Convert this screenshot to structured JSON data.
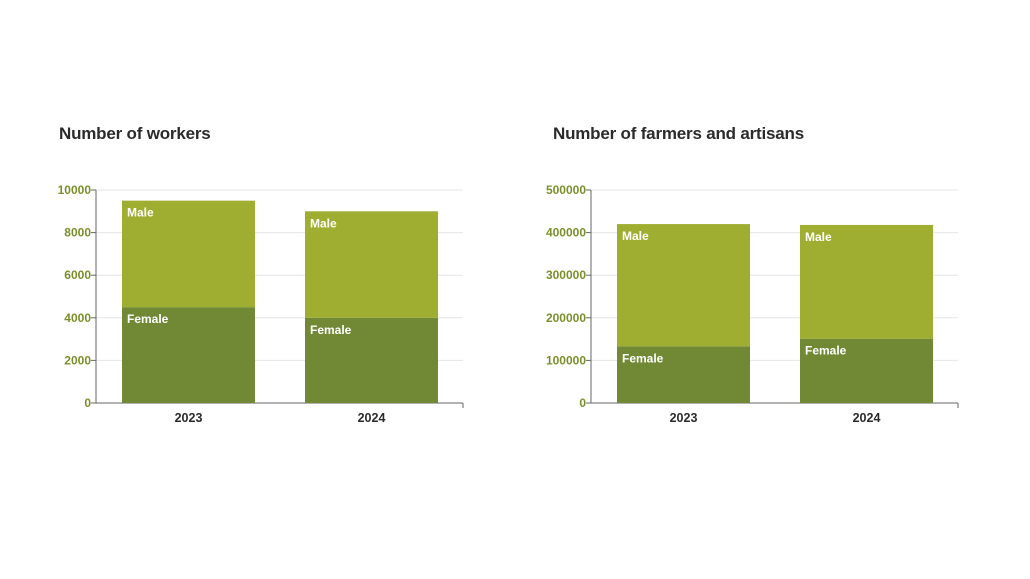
{
  "colors": {
    "female": "#718935",
    "male": "#9fae31",
    "axis": "#666666",
    "tick_label": "#7a8f2a",
    "grid": "#e6e6e6"
  },
  "chart_data": [
    {
      "type": "bar",
      "stacked": true,
      "title": "Number of workers",
      "categories": [
        "2023",
        "2024"
      ],
      "series": [
        {
          "name": "Female",
          "values": [
            4500,
            4000
          ]
        },
        {
          "name": "Male",
          "values": [
            5000,
            5000
          ]
        }
      ],
      "ylim": [
        0,
        10000
      ],
      "yticks": [
        "0",
        "2000",
        "4000",
        "6000",
        "8000",
        "10000"
      ],
      "xlabel": "",
      "ylabel": "",
      "grid": true,
      "legend": "inline segment labels"
    },
    {
      "type": "bar",
      "stacked": true,
      "title": "Number of farmers and artisans",
      "categories": [
        "2023",
        "2024"
      ],
      "series": [
        {
          "name": "Female",
          "values": [
            133000,
            151000
          ]
        },
        {
          "name": "Male",
          "values": [
            287000,
            267000
          ]
        }
      ],
      "ylim": [
        0,
        500000
      ],
      "yticks": [
        "0",
        "100000",
        "200000",
        "300000",
        "400000",
        "500000"
      ],
      "xlabel": "",
      "ylabel": "",
      "grid": true,
      "legend": "inline segment labels"
    }
  ]
}
